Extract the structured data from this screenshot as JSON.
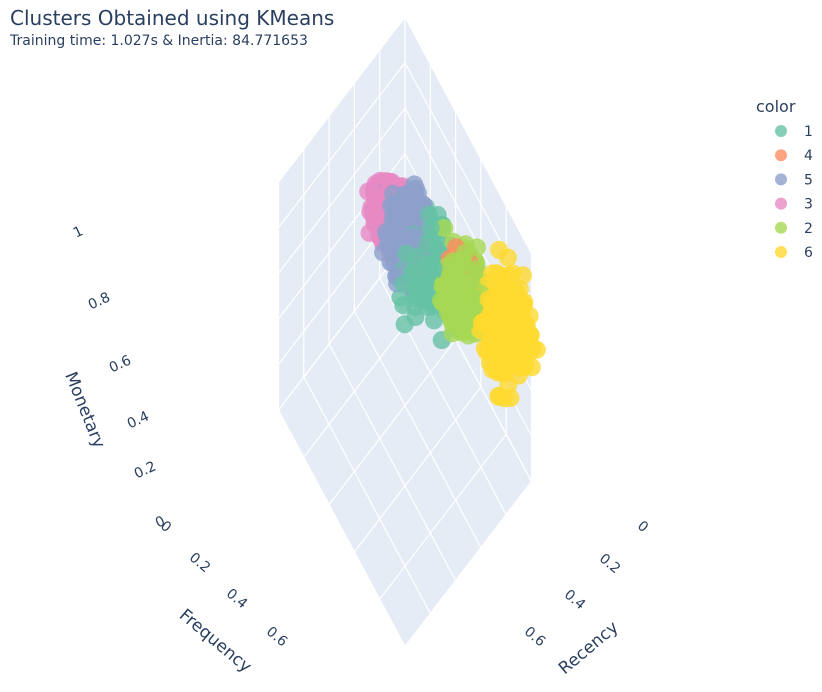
{
  "chart_data": {
    "type": "scatter3d",
    "title": "Clusters Obtained using KMeans",
    "subtitle": "Training time: 1.027s & Inertia: 84.771653",
    "axes": {
      "x": {
        "label": "Recency",
        "ticks": [
          "0",
          "0.2",
          "0.4",
          "0.6"
        ]
      },
      "y": {
        "label": "Frequency",
        "ticks": [
          "0",
          "0.2",
          "0.4",
          "0.6"
        ]
      },
      "z": {
        "label": "Monetary",
        "ticks": [
          "0",
          "0.2",
          "0.4",
          "0.6",
          "0.8",
          "1"
        ]
      }
    },
    "grid": true,
    "legend": {
      "title": "color",
      "placement": "top-right",
      "entries": [
        {
          "name": "1",
          "color": "#66c2a5"
        },
        {
          "name": "4",
          "color": "#fc8d62"
        },
        {
          "name": "5",
          "color": "#8da0cb"
        },
        {
          "name": "3",
          "color": "#e78ac3"
        },
        {
          "name": "2",
          "color": "#a6d854"
        },
        {
          "name": "6",
          "color": "#ffd92f"
        }
      ]
    },
    "series": [
      {
        "name": "1",
        "color": "#66c2a5",
        "center": {
          "recency": 0.35,
          "frequency": 0.2,
          "monetary": 0.42
        },
        "spread": 0.07,
        "count": 140
      },
      {
        "name": "4",
        "color": "#fc8d62",
        "center": {
          "recency": 0.55,
          "frequency": 0.1,
          "monetary": 0.55
        },
        "spread": 0.03,
        "count": 40
      },
      {
        "name": "5",
        "color": "#8da0cb",
        "center": {
          "recency": 0.25,
          "frequency": 0.22,
          "monetary": 0.46
        },
        "spread": 0.05,
        "count": 350
      },
      {
        "name": "3",
        "color": "#e78ac3",
        "center": {
          "recency": 0.08,
          "frequency": 0.22,
          "monetary": 0.42
        },
        "spread": 0.04,
        "count": 400
      },
      {
        "name": "2",
        "color": "#a6d854",
        "center": {
          "recency": 0.58,
          "frequency": 0.12,
          "monetary": 0.48
        },
        "spread": 0.045,
        "count": 350
      },
      {
        "name": "6",
        "color": "#ffd92f",
        "center": {
          "recency": 0.85,
          "frequency": 0.05,
          "monetary": 0.55
        },
        "spread": 0.06,
        "count": 350
      }
    ]
  }
}
